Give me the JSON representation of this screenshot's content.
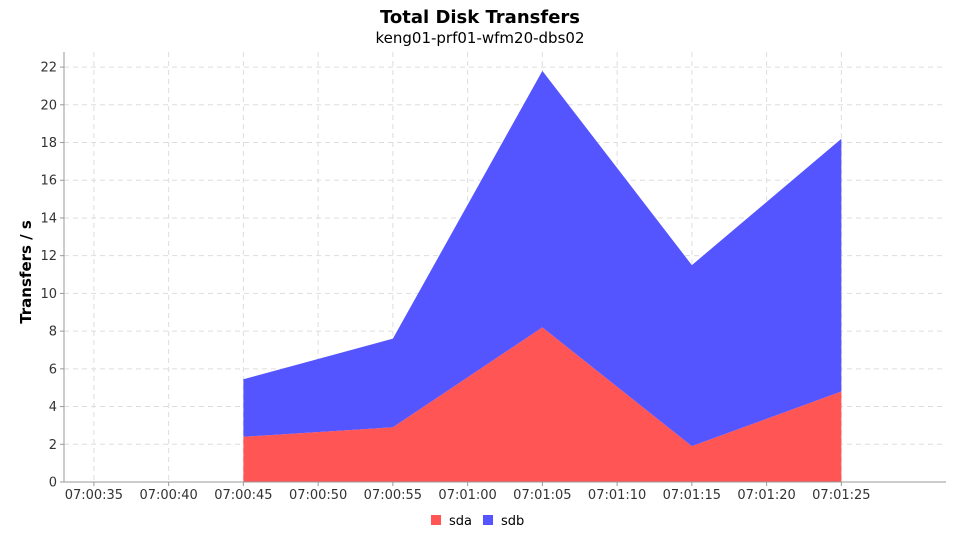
{
  "chart_data": {
    "type": "area",
    "stacked": true,
    "title": "Total Disk Transfers",
    "subtitle": "keng01-prf01-wfm20-dbs02",
    "xlabel": "",
    "ylabel": "Transfers / s",
    "x_ticks": [
      "07:00:35",
      "07:00:40",
      "07:00:45",
      "07:00:50",
      "07:00:55",
      "07:01:00",
      "07:01:05",
      "07:01:10",
      "07:01:15",
      "07:01:20",
      "07:01:25"
    ],
    "x": [
      "07:00:45",
      "07:00:55",
      "07:01:05",
      "07:01:15",
      "07:01:25"
    ],
    "series": [
      {
        "name": "sda",
        "color": "#ff5555",
        "values": [
          2.4,
          2.9,
          8.2,
          1.9,
          4.8
        ]
      },
      {
        "name": "sdb",
        "color": "#5555ff",
        "values": [
          3.05,
          4.7,
          13.6,
          9.6,
          13.4
        ]
      }
    ],
    "ylim": [
      0,
      22.8
    ],
    "y_ticks": [
      0,
      2,
      4,
      6,
      8,
      10,
      12,
      14,
      16,
      18,
      20,
      22
    ],
    "grid": true,
    "legend_position": "bottom"
  }
}
